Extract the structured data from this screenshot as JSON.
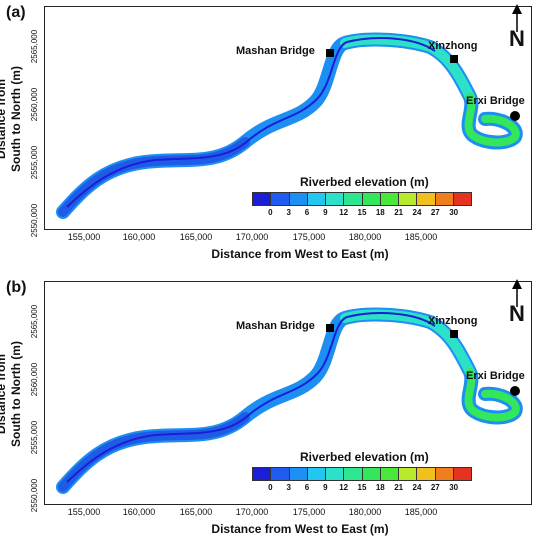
{
  "legend": {
    "title": "Riverbed elevation (m)",
    "ticks": [
      "0",
      "3",
      "6",
      "9",
      "12",
      "15",
      "18",
      "21",
      "24",
      "27",
      "30"
    ],
    "colors": [
      "#1a1fd6",
      "#1e5cf0",
      "#1b8ff2",
      "#23c6f0",
      "#2de0c8",
      "#2fe690",
      "#33e65a",
      "#4ae83a",
      "#b6ea2a",
      "#f2c01e",
      "#f07e1e",
      "#e63220"
    ]
  },
  "axes": {
    "xlabel": "Distance from West to East (m)",
    "ylabel_line1": "Distance from",
    "ylabel_line2": "South to North (m)",
    "xticks": [
      "155,000",
      "160,000",
      "165,000",
      "170,000",
      "175,000",
      "180,000",
      "185,000"
    ],
    "yticks": [
      "2565,000",
      "2560,000",
      "2555,000",
      "2550,000"
    ]
  },
  "places": {
    "mashan": "Mashan Bridge",
    "xinzhong": "Xinzhong",
    "erxi": "Erxi Bridge"
  },
  "north_symbol": "N",
  "panels": [
    {
      "label": "(a)"
    },
    {
      "label": "(b)"
    }
  ]
}
